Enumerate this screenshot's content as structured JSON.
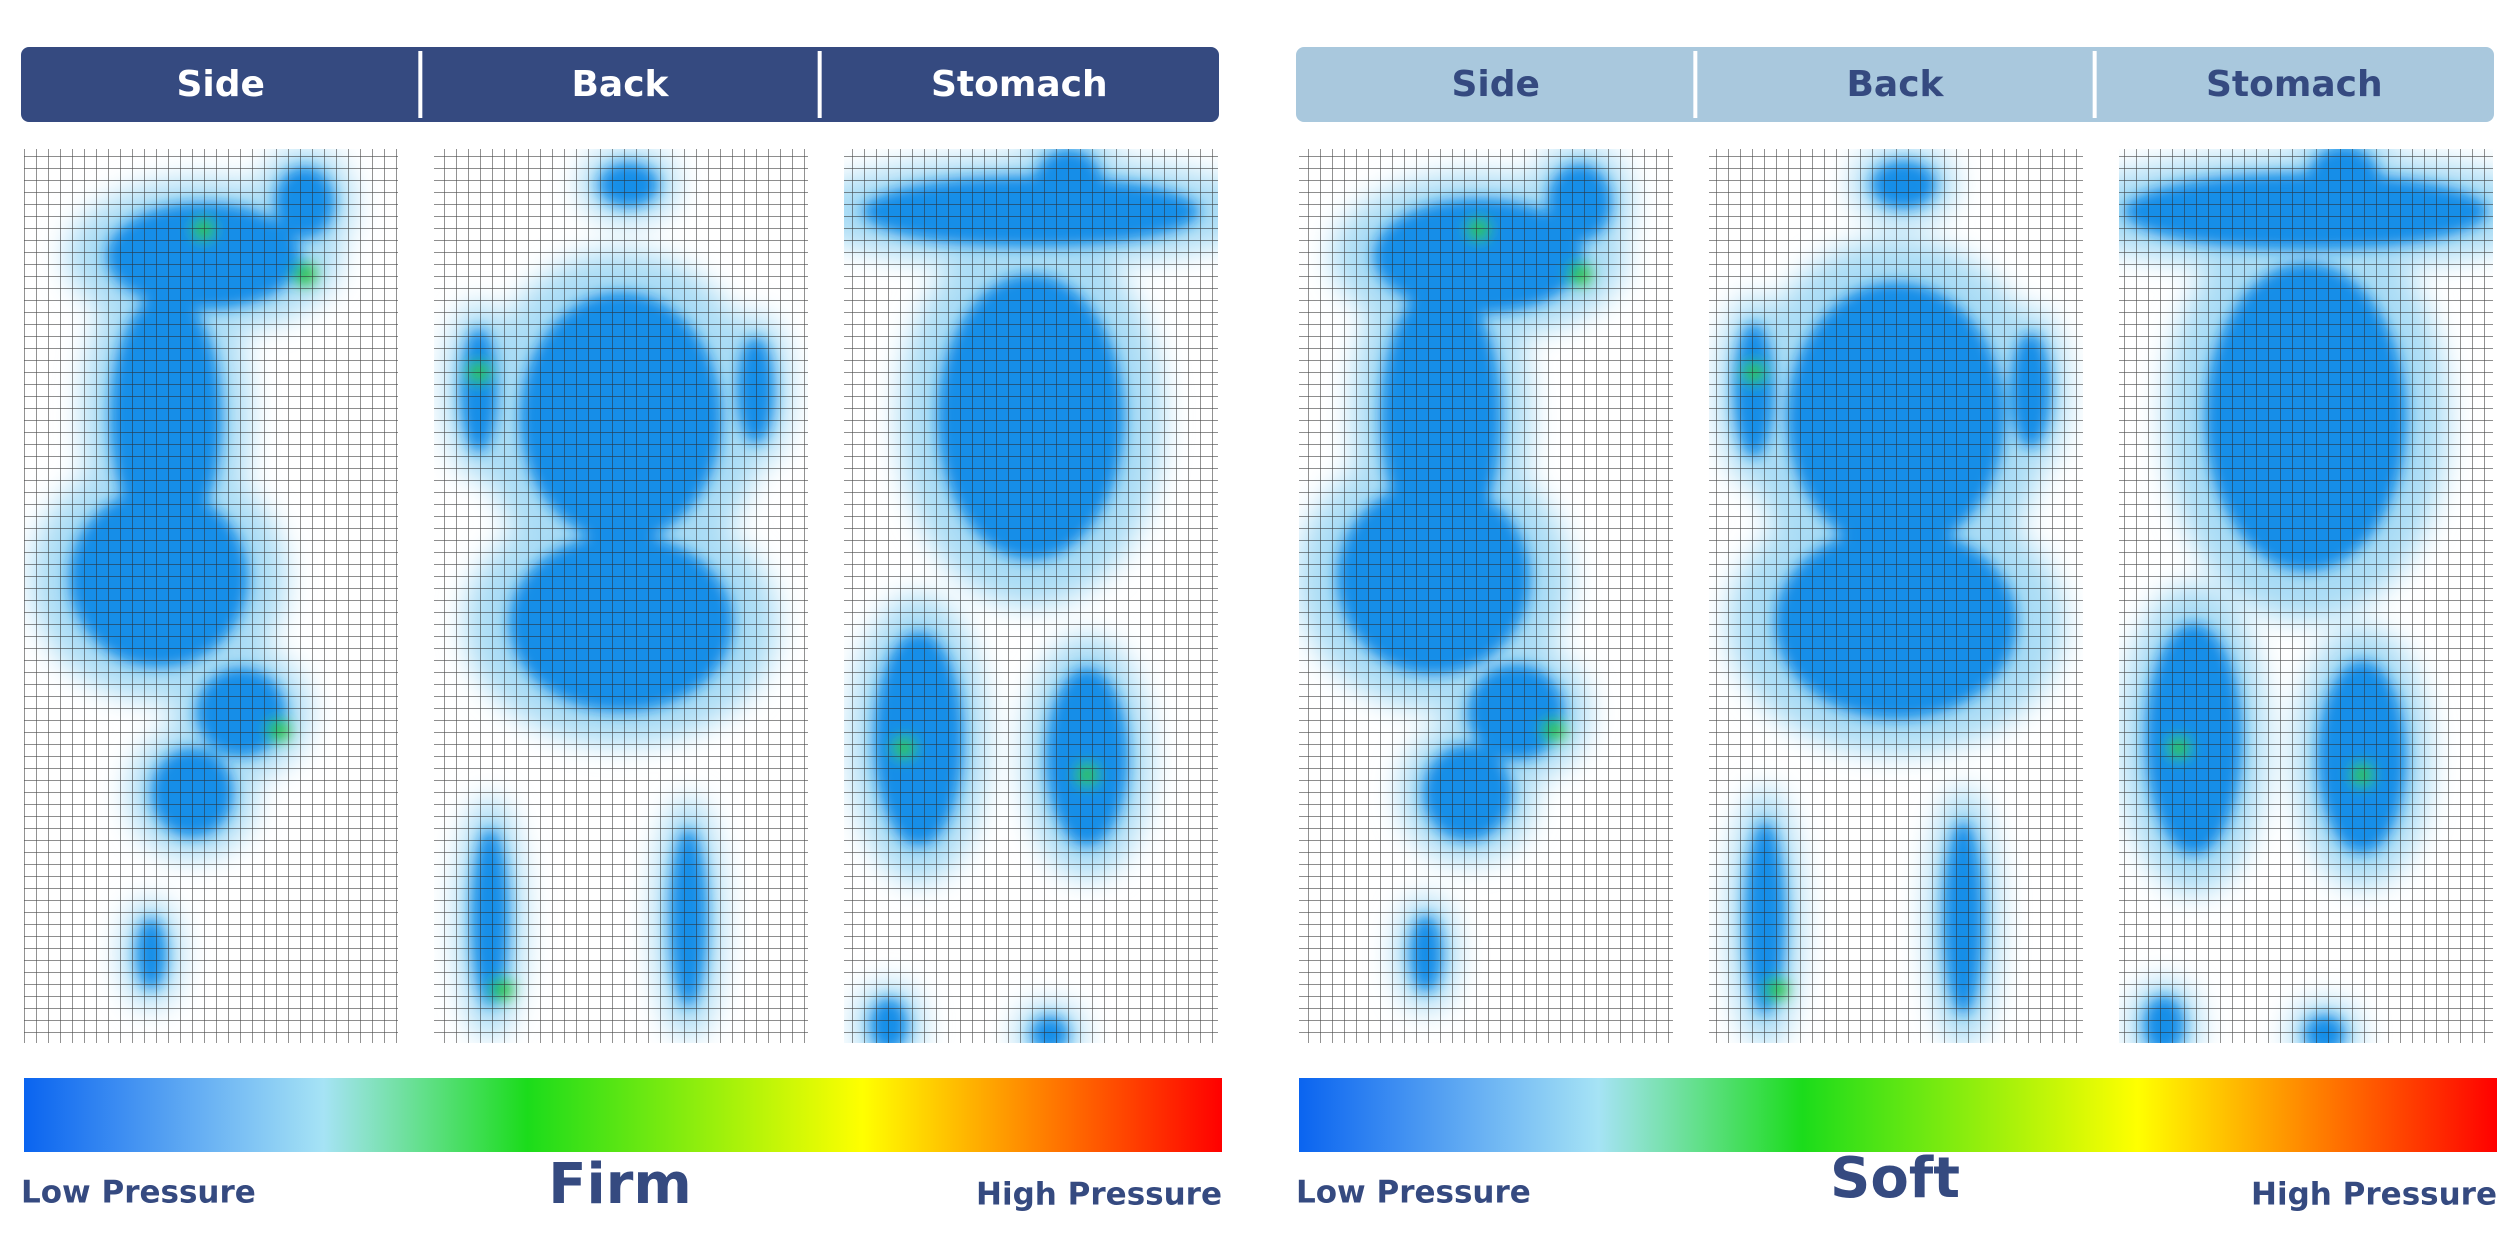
{
  "panels": [
    {
      "tabs": [
        "Side",
        "Back",
        "Stomach"
      ],
      "label": "Firm",
      "low_label": "Low Pressure",
      "high_label": "High Pressure"
    },
    {
      "tabs": [
        "Side",
        "Back",
        "Stomach"
      ],
      "label": "Soft",
      "low_label": "Low Pressure",
      "high_label": "High Pressure"
    }
  ]
}
